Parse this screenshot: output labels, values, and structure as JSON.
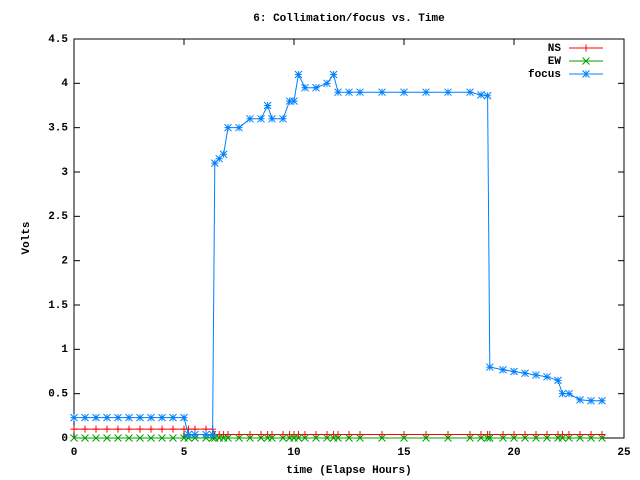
{
  "chart_data": {
    "type": "line",
    "title": "6: Collimation/focus vs. Time",
    "x_label": "time (Elapse Hours)",
    "y_label": "Volts",
    "x": [
      0,
      0.5,
      1,
      1.5,
      2,
      2.5,
      3,
      3.5,
      4,
      4.5,
      5,
      5.2,
      5.5,
      6,
      6.3,
      6.4,
      6.6,
      6.8,
      7,
      7.5,
      8,
      8.5,
      8.8,
      9,
      9.5,
      9.8,
      10,
      10.2,
      10.5,
      11,
      11.5,
      11.8,
      12,
      12.5,
      13,
      14,
      15,
      16,
      17,
      18,
      18.5,
      18.8,
      18.9,
      19.5,
      20,
      20.5,
      21,
      21.5,
      22,
      22.2,
      22.5,
      23,
      23.5,
      24
    ],
    "series": [
      {
        "name": "NS",
        "color": "#ff0000",
        "marker": "plus",
        "values": [
          0.1,
          0.1,
          0.1,
          0.1,
          0.1,
          0.1,
          0.1,
          0.1,
          0.1,
          0.1,
          0.1,
          0.1,
          0.1,
          0.1,
          0.1,
          0.04,
          0.04,
          0.04,
          0.04,
          0.04,
          0.04,
          0.04,
          0.04,
          0.04,
          0.04,
          0.04,
          0.04,
          0.04,
          0.04,
          0.04,
          0.04,
          0.04,
          0.04,
          0.04,
          0.04,
          0.04,
          0.04,
          0.04,
          0.04,
          0.04,
          0.04,
          0.04,
          0.04,
          0.04,
          0.04,
          0.04,
          0.04,
          0.04,
          0.04,
          0.04,
          0.04,
          0.04,
          0.04,
          0.04
        ]
      },
      {
        "name": "EW",
        "color": "#00a000",
        "marker": "cross",
        "values": [
          0,
          0,
          0,
          0,
          0,
          0,
          0,
          0,
          0,
          0,
          0,
          0,
          0,
          0,
          0,
          0,
          0,
          0,
          0,
          0,
          0,
          0,
          0,
          0,
          0,
          0,
          0,
          0,
          0,
          0,
          0,
          0,
          0,
          0,
          0,
          0,
          0,
          0,
          0,
          0,
          0,
          0,
          0,
          0,
          0,
          0,
          0,
          0,
          0,
          0,
          0,
          0,
          0,
          0
        ]
      },
      {
        "name": "focus",
        "color": "#0080ff",
        "marker": "star",
        "values": [
          0.23,
          0.23,
          0.23,
          0.23,
          0.23,
          0.23,
          0.23,
          0.23,
          0.23,
          0.23,
          0.23,
          0.04,
          0.04,
          0.04,
          0.04,
          3.1,
          3.15,
          3.2,
          3.5,
          3.5,
          3.6,
          3.6,
          3.75,
          3.6,
          3.6,
          3.8,
          3.8,
          4.1,
          3.95,
          3.95,
          4.0,
          4.1,
          3.9,
          3.9,
          3.9,
          3.9,
          3.9,
          3.9,
          3.9,
          3.9,
          3.87,
          3.86,
          0.8,
          0.77,
          0.75,
          0.73,
          0.71,
          0.69,
          0.65,
          0.5,
          0.5,
          0.43,
          0.42,
          0.42
        ]
      }
    ],
    "xlim": [
      0,
      25
    ],
    "xticks": [
      0,
      5,
      10,
      15,
      20,
      25
    ],
    "ylim": [
      0,
      4.5
    ],
    "yticks": [
      0,
      0.5,
      1,
      1.5,
      2,
      2.5,
      3,
      3.5,
      4,
      4.5
    ],
    "legend": "top-right"
  }
}
